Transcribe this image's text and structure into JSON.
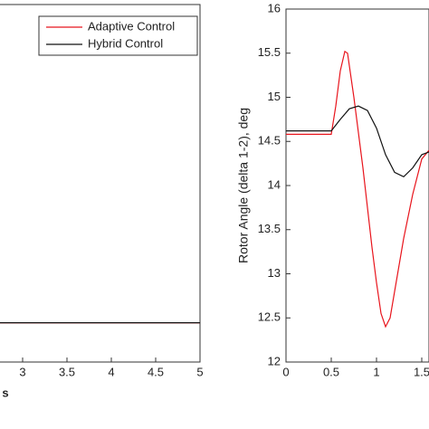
{
  "chart_data": [
    {
      "type": "line",
      "xlabel": "s",
      "xlim": [
        2.5,
        5
      ],
      "xticks": [
        3,
        3.5,
        4,
        4.5,
        5
      ],
      "ylim": [
        0,
        1
      ],
      "legend": "upper right",
      "series": [
        {
          "name": "Adaptive Control",
          "color": "#e8141c",
          "x": [
            2.5,
            5
          ],
          "values": [
            0.11,
            0.11
          ]
        },
        {
          "name": "Hybrid Control",
          "color": "#111111",
          "x": [
            2.5,
            5
          ],
          "values": [
            0.11,
            0.11
          ]
        }
      ]
    },
    {
      "type": "line",
      "ylabel": "Rotor Angle (delta 1-2), deg",
      "xlim": [
        0,
        1.58
      ],
      "xticks": [
        0,
        0.5,
        1,
        1.5
      ],
      "ylim": [
        12,
        16
      ],
      "yticks": [
        12,
        12.5,
        13,
        13.5,
        14,
        14.5,
        15,
        15.5,
        16
      ],
      "series": [
        {
          "color": "#e8141c",
          "x": [
            0,
            0.5,
            0.55,
            0.6,
            0.65,
            0.68,
            0.75,
            0.85,
            0.95,
            1.0,
            1.05,
            1.1,
            1.15,
            1.2,
            1.3,
            1.4,
            1.5,
            1.58
          ],
          "values": [
            14.58,
            14.58,
            14.9,
            15.3,
            15.52,
            15.5,
            15.0,
            14.2,
            13.3,
            12.9,
            12.55,
            12.4,
            12.5,
            12.8,
            13.4,
            13.9,
            14.3,
            14.4
          ]
        },
        {
          "color": "#111111",
          "x": [
            0,
            0.5,
            0.6,
            0.7,
            0.8,
            0.9,
            1.0,
            1.1,
            1.2,
            1.3,
            1.4,
            1.5,
            1.58
          ],
          "values": [
            14.62,
            14.62,
            14.75,
            14.87,
            14.9,
            14.85,
            14.65,
            14.35,
            14.15,
            14.1,
            14.2,
            14.35,
            14.38
          ]
        }
      ]
    }
  ]
}
